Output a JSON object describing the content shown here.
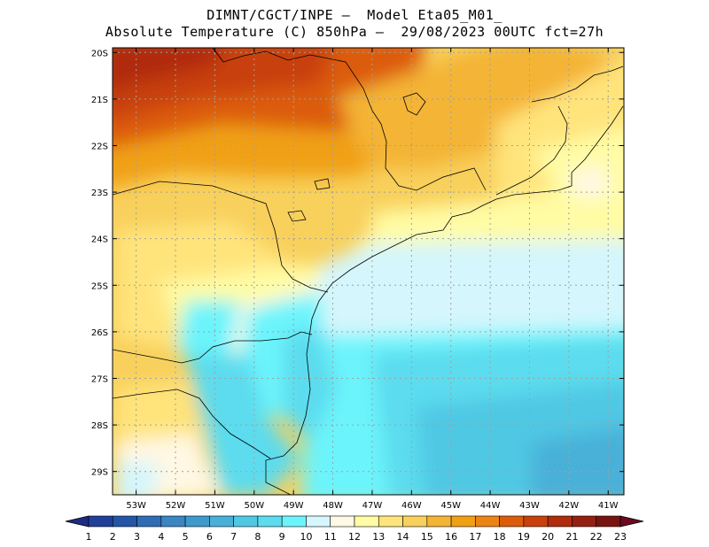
{
  "title_line1": "DIMNT/CGCT/INPE —  Model Eta05_M01_",
  "title_line2": "Absolute Temperature (C) 850hPa —  29/08/2023 00UTC fct=27h",
  "lat_ticks": [
    "20S",
    "21S",
    "22S",
    "23S",
    "24S",
    "25S",
    "26S",
    "27S",
    "28S",
    "29S"
  ],
  "lon_ticks": [
    "53W",
    "52W",
    "51W",
    "50W",
    "49W",
    "48W",
    "47W",
    "46W",
    "45W",
    "44W",
    "43W",
    "42W",
    "41W"
  ],
  "colorbar": {
    "labels": [
      "1",
      "2",
      "3",
      "4",
      "5",
      "6",
      "7",
      "8",
      "9",
      "10",
      "11",
      "12",
      "13",
      "14",
      "15",
      "16",
      "17",
      "18",
      "19",
      "20",
      "21",
      "22",
      "23"
    ],
    "colors": [
      "#1f3f98",
      "#2455a6",
      "#2e6db4",
      "#3a85c2",
      "#3f9acc",
      "#48b0d8",
      "#50c8e4",
      "#5cdcee",
      "#6cf4fc",
      "#d4f6fc",
      "#fff8e4",
      "#fffca4",
      "#ffe47c",
      "#f8d05c",
      "#f4b434",
      "#f0a014",
      "#ec8414",
      "#dc5c0c",
      "#c8400c",
      "#b02c0c",
      "#942010",
      "#781410"
    ],
    "left_arrow_color": "#1c2c84",
    "right_arrow_color": "#6c0820"
  },
  "map": {
    "lon_range": [
      -53.6,
      -40.6
    ],
    "lat_range": [
      -29.5,
      -19.9
    ],
    "coast_color": "#000000",
    "grid_color": "#a0a0a0"
  }
}
